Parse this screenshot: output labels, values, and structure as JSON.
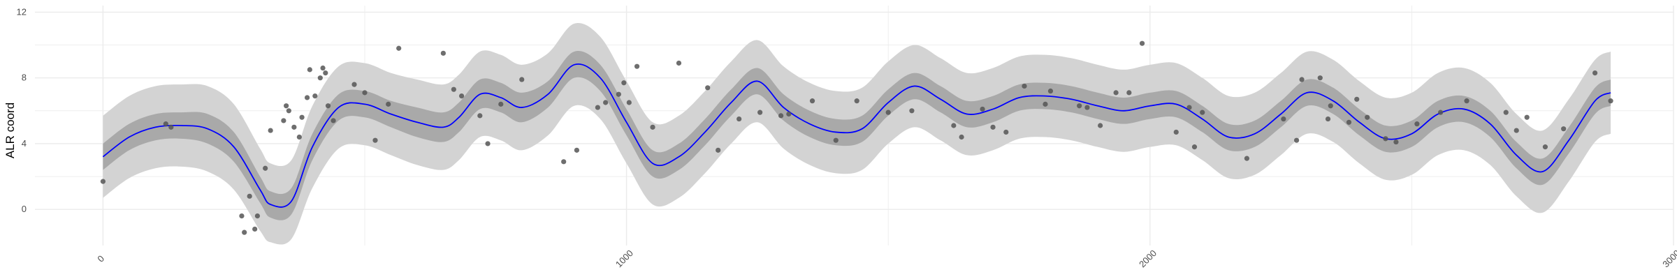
{
  "chart_data": {
    "type": "line",
    "title": "",
    "xlabel": "",
    "ylabel": "ALR coord",
    "xlim": [
      -130,
      3000
    ],
    "ylim": [
      -2.2,
      12.4
    ],
    "grid": true,
    "legend": "none",
    "x_ticks": [
      0,
      1000,
      2000,
      3000
    ],
    "x_tick_labels": [
      "0",
      "1000",
      "2000",
      "3000"
    ],
    "y_ticks": [
      0,
      4,
      8,
      12
    ],
    "y_tick_labels": [
      "0",
      "4",
      "8",
      "12"
    ],
    "colors": {
      "mean_line": "#0000ff",
      "inner_band": "#a9a9a9",
      "outer_band": "#d3d3d3",
      "points": "#555555",
      "grid": "#ebebeb"
    },
    "series": [
      {
        "kind": "mean",
        "x": [
          0,
          50,
          100,
          150,
          200,
          250,
          300,
          320,
          360,
          400,
          450,
          500,
          550,
          600,
          650,
          680,
          720,
          760,
          800,
          850,
          900,
          950,
          1000,
          1050,
          1100,
          1150,
          1200,
          1250,
          1300,
          1350,
          1400,
          1450,
          1500,
          1550,
          1600,
          1650,
          1700,
          1750,
          1800,
          1850,
          1900,
          1950,
          2000,
          2050,
          2100,
          2150,
          2200,
          2250,
          2300,
          2350,
          2400,
          2450,
          2500,
          2550,
          2600,
          2650,
          2700,
          2750,
          2800,
          2850,
          2880
        ],
        "y": [
          3.2,
          4.4,
          5.0,
          5.1,
          4.9,
          3.8,
          1.2,
          0.3,
          0.5,
          3.8,
          6.2,
          6.4,
          5.8,
          5.3,
          5.0,
          5.6,
          7.0,
          6.8,
          6.2,
          7.0,
          8.8,
          8.0,
          5.3,
          2.8,
          3.2,
          4.7,
          6.5,
          7.8,
          6.2,
          5.2,
          4.7,
          4.9,
          6.5,
          7.5,
          6.7,
          5.8,
          6.1,
          6.8,
          6.9,
          6.7,
          6.3,
          6.0,
          6.3,
          6.4,
          5.5,
          4.4,
          4.6,
          5.8,
          7.1,
          6.6,
          5.3,
          4.3,
          4.6,
          5.8,
          6.1,
          5.2,
          3.3,
          2.3,
          4.2,
          6.6,
          7.1
        ]
      },
      {
        "kind": "inner_band",
        "x": [
          0,
          50,
          100,
          150,
          200,
          250,
          300,
          320,
          360,
          400,
          450,
          500,
          550,
          600,
          650,
          680,
          720,
          760,
          800,
          850,
          900,
          950,
          1000,
          1050,
          1100,
          1150,
          1200,
          1250,
          1300,
          1350,
          1400,
          1450,
          1500,
          1550,
          1600,
          1650,
          1700,
          1750,
          1800,
          1850,
          1900,
          1950,
          2000,
          2050,
          2100,
          2150,
          2200,
          2250,
          2300,
          2350,
          2400,
          2450,
          2500,
          2550,
          2600,
          2650,
          2700,
          2750,
          2800,
          2850,
          2880
        ],
        "lower": [
          2.4,
          3.6,
          4.2,
          4.3,
          4.0,
          2.9,
          0.4,
          -0.5,
          -0.3,
          3.0,
          5.4,
          5.6,
          5.0,
          4.4,
          4.1,
          4.7,
          6.1,
          5.9,
          5.3,
          6.2,
          8.0,
          7.2,
          4.5,
          2.0,
          2.4,
          3.9,
          5.7,
          7.0,
          5.4,
          4.4,
          3.9,
          4.1,
          5.7,
          6.7,
          5.9,
          5.0,
          5.3,
          6.0,
          6.1,
          5.9,
          5.5,
          5.2,
          5.5,
          5.6,
          4.7,
          3.6,
          3.8,
          5.0,
          6.3,
          5.8,
          4.5,
          3.5,
          3.8,
          5.0,
          5.3,
          4.4,
          2.5,
          1.5,
          3.4,
          5.8,
          6.3
        ],
        "upper": [
          4.0,
          5.2,
          5.8,
          5.9,
          5.8,
          4.7,
          2.0,
          1.1,
          1.3,
          4.6,
          7.0,
          7.2,
          6.6,
          6.2,
          5.9,
          6.5,
          7.9,
          7.7,
          7.1,
          7.8,
          9.6,
          8.8,
          6.1,
          3.6,
          4.0,
          5.5,
          7.3,
          8.6,
          7.0,
          6.0,
          5.5,
          5.7,
          7.3,
          8.3,
          7.5,
          6.6,
          6.9,
          7.6,
          7.7,
          7.5,
          7.1,
          6.8,
          7.1,
          7.2,
          6.3,
          5.2,
          5.4,
          6.6,
          7.9,
          7.4,
          6.1,
          5.1,
          5.4,
          6.6,
          6.9,
          6.0,
          4.1,
          3.1,
          5.0,
          7.4,
          7.9
        ]
      },
      {
        "kind": "outer_band",
        "x": [
          0,
          50,
          100,
          150,
          200,
          250,
          300,
          320,
          360,
          400,
          450,
          500,
          550,
          600,
          650,
          680,
          720,
          760,
          800,
          850,
          900,
          950,
          1000,
          1050,
          1100,
          1150,
          1200,
          1250,
          1300,
          1350,
          1400,
          1450,
          1500,
          1550,
          1600,
          1650,
          1700,
          1750,
          1800,
          1850,
          1900,
          1950,
          2000,
          2050,
          2100,
          2150,
          2200,
          2250,
          2300,
          2350,
          2400,
          2450,
          2500,
          2550,
          2600,
          2650,
          2700,
          2750,
          2800,
          2850,
          2880
        ],
        "lower": [
          0.7,
          1.9,
          2.5,
          2.6,
          2.3,
          1.2,
          -1.3,
          -2.0,
          -1.8,
          1.3,
          3.7,
          3.9,
          3.3,
          2.7,
          2.4,
          3.0,
          4.4,
          4.2,
          3.6,
          4.5,
          6.3,
          5.5,
          2.8,
          0.3,
          0.7,
          2.2,
          4.0,
          5.3,
          3.7,
          2.7,
          2.2,
          2.4,
          4.0,
          5.0,
          4.2,
          3.3,
          3.6,
          4.3,
          4.4,
          4.2,
          3.8,
          3.5,
          3.8,
          3.9,
          3.0,
          1.9,
          2.1,
          3.3,
          4.6,
          4.1,
          2.8,
          1.8,
          2.1,
          3.3,
          3.6,
          2.7,
          0.8,
          -0.2,
          1.7,
          4.1,
          4.6
        ],
        "upper": [
          5.7,
          6.9,
          7.5,
          7.6,
          7.5,
          6.4,
          3.7,
          2.8,
          3.0,
          6.3,
          8.7,
          8.9,
          8.3,
          7.9,
          7.6,
          8.2,
          9.6,
          9.4,
          8.8,
          9.5,
          11.3,
          10.5,
          7.8,
          5.3,
          5.7,
          7.2,
          9.0,
          10.3,
          8.7,
          7.7,
          7.2,
          7.4,
          9.0,
          10.0,
          9.2,
          8.3,
          8.6,
          9.3,
          9.4,
          9.2,
          8.8,
          8.5,
          8.8,
          8.9,
          8.0,
          6.9,
          7.1,
          8.3,
          9.6,
          9.1,
          7.8,
          6.8,
          7.1,
          8.3,
          8.6,
          7.7,
          5.8,
          4.8,
          6.7,
          9.1,
          9.6
        ]
      },
      {
        "kind": "points",
        "x": [
          0,
          120,
          130,
          265,
          270,
          280,
          290,
          295,
          310,
          320,
          345,
          350,
          355,
          365,
          375,
          380,
          390,
          395,
          405,
          415,
          420,
          425,
          430,
          440,
          480,
          500,
          520,
          545,
          565,
          650,
          670,
          685,
          720,
          735,
          760,
          800,
          880,
          905,
          945,
          960,
          985,
          995,
          1005,
          1020,
          1050,
          1100,
          1155,
          1175,
          1215,
          1255,
          1295,
          1310,
          1355,
          1400,
          1440,
          1500,
          1545,
          1625,
          1640,
          1680,
          1700,
          1725,
          1760,
          1800,
          1810,
          1865,
          1880,
          1905,
          1935,
          1960,
          1985,
          2050,
          2075,
          2085,
          2100,
          2185,
          2255,
          2280,
          2290,
          2325,
          2340,
          2345,
          2380,
          2395,
          2415,
          2450,
          2470,
          2510,
          2555,
          2605,
          2680,
          2700,
          2720,
          2755,
          2790,
          2850,
          2880
        ],
        "y": [
          1.7,
          5.2,
          5.0,
          -0.4,
          -1.4,
          0.8,
          -1.2,
          -0.4,
          2.5,
          4.8,
          5.4,
          6.3,
          6.0,
          5.0,
          4.4,
          5.6,
          6.8,
          8.5,
          6.9,
          8.0,
          8.6,
          8.3,
          6.3,
          5.4,
          7.6,
          7.1,
          4.2,
          6.4,
          9.8,
          9.5,
          7.3,
          6.9,
          5.7,
          4.0,
          6.4,
          7.9,
          2.9,
          3.6,
          6.2,
          6.5,
          7.0,
          7.7,
          6.5,
          8.7,
          5.0,
          8.9,
          7.4,
          3.6,
          5.5,
          5.9,
          5.7,
          5.8,
          6.6,
          4.2,
          6.6,
          5.9,
          6.0,
          5.1,
          4.4,
          6.1,
          5.0,
          4.7,
          7.5,
          6.4,
          7.2,
          6.3,
          6.2,
          5.1,
          7.1,
          7.1,
          10.1,
          4.7,
          6.2,
          3.8,
          5.9,
          3.1,
          5.5,
          4.2,
          7.9,
          8.0,
          5.5,
          6.3,
          5.3,
          6.7,
          5.6,
          4.3,
          4.1,
          5.2,
          5.9,
          6.6,
          5.9,
          4.8,
          5.6,
          3.8,
          4.9,
          8.3,
          6.6
        ]
      }
    ]
  }
}
